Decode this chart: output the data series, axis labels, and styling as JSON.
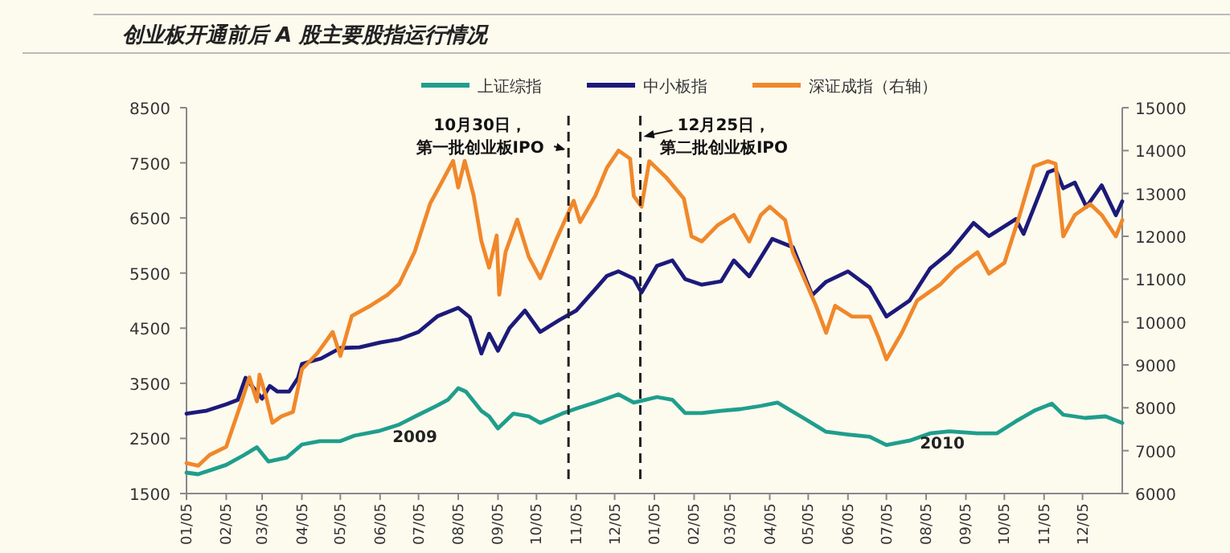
{
  "chart_data": {
    "type": "line",
    "title": "创业板开通前后 A 股主要股指运行情况",
    "xlim": [
      "2009-01-05",
      "2011-01-05"
    ],
    "ylim": [
      1500,
      8500
    ],
    "y2lim": [
      6000,
      15000
    ],
    "xticks": [
      {
        "value": "2009-01-05",
        "label": "01/05"
      },
      {
        "value": "2009-02-05",
        "label": "02/05"
      },
      {
        "value": "2009-03-05",
        "label": "03/05"
      },
      {
        "value": "2009-04-05",
        "label": "04/05"
      },
      {
        "value": "2009-05-05",
        "label": "05/05"
      },
      {
        "value": "2009-06-05",
        "label": "06/05"
      },
      {
        "value": "2009-07-05",
        "label": "07/05"
      },
      {
        "value": "2009-08-05",
        "label": "08/05"
      },
      {
        "value": "2009-09-05",
        "label": "09/05"
      },
      {
        "value": "2009-10-05",
        "label": "10/05"
      },
      {
        "value": "2009-11-05",
        "label": "11/05"
      },
      {
        "value": "2009-12-05",
        "label": "12/05"
      },
      {
        "value": "2010-01-05",
        "label": "01/05"
      },
      {
        "value": "2010-02-05",
        "label": "02/05"
      },
      {
        "value": "2010-03-05",
        "label": "03/05"
      },
      {
        "value": "2010-04-05",
        "label": "04/05"
      },
      {
        "value": "2010-05-05",
        "label": "05/05"
      },
      {
        "value": "2010-06-05",
        "label": "06/05"
      },
      {
        "value": "2010-07-05",
        "label": "07/05"
      },
      {
        "value": "2010-08-05",
        "label": "08/05"
      },
      {
        "value": "2010-09-05",
        "label": "09/05"
      },
      {
        "value": "2010-10-05",
        "label": "10/05"
      },
      {
        "value": "2010-11-05",
        "label": "11/05"
      },
      {
        "value": "2010-12-05",
        "label": "12/05"
      }
    ],
    "yticks": [
      1500,
      2500,
      3500,
      4500,
      5500,
      6500,
      7500,
      8500
    ],
    "y2ticks": [
      6000,
      7000,
      8000,
      9000,
      10000,
      11000,
      12000,
      13000,
      14000,
      15000
    ],
    "legend": "top",
    "grid": false,
    "marker": "none",
    "line_style": "solid",
    "series": [
      {
        "name": "上证综指",
        "color": "#1f9e8c",
        "x": [
          "2009-01-05",
          "2009-01-14",
          "2009-02-05",
          "2009-02-19",
          "2009-03-01",
          "2009-03-10",
          "2009-03-24",
          "2009-04-05",
          "2009-04-19",
          "2009-05-05",
          "2009-05-16",
          "2009-06-05",
          "2009-06-20",
          "2009-07-05",
          "2009-07-20",
          "2009-07-28",
          "2009-08-05",
          "2009-08-11",
          "2009-08-23",
          "2009-08-29",
          "2009-09-05",
          "2009-09-17",
          "2009-09-29",
          "2009-10-08",
          "2009-10-25",
          "2009-11-06",
          "2009-11-20",
          "2009-12-08",
          "2009-12-20",
          "2010-01-07",
          "2010-01-19",
          "2010-01-29",
          "2010-02-11",
          "2010-02-26",
          "2010-03-13",
          "2010-03-29",
          "2010-04-11",
          "2010-05-02",
          "2010-05-19",
          "2010-06-05",
          "2010-06-22",
          "2010-07-05",
          "2010-07-23",
          "2010-08-08",
          "2010-08-23",
          "2010-09-14",
          "2010-09-29",
          "2010-10-14",
          "2010-10-29",
          "2010-11-11",
          "2010-11-20",
          "2010-12-07",
          "2010-12-23",
          "2011-01-05"
        ],
        "values": [
          1880,
          1850,
          2020,
          2200,
          2340,
          2080,
          2150,
          2390,
          2450,
          2450,
          2550,
          2640,
          2750,
          2930,
          3100,
          3200,
          3410,
          3350,
          3000,
          2900,
          2680,
          2950,
          2900,
          2780,
          2950,
          3050,
          3150,
          3300,
          3150,
          3250,
          3200,
          2960,
          2960,
          3000,
          3030,
          3090,
          3150,
          2860,
          2620,
          2570,
          2530,
          2380,
          2460,
          2590,
          2630,
          2590,
          2590,
          2810,
          3010,
          3130,
          2930,
          2870,
          2900,
          2780
        ]
      },
      {
        "name": "中小板指",
        "color": "#1c1a7a",
        "x": [
          "2009-01-05",
          "2009-01-20",
          "2009-02-05",
          "2009-02-14",
          "2009-02-20",
          "2009-03-05",
          "2009-03-11",
          "2009-03-17",
          "2009-03-26",
          "2009-04-02",
          "2009-04-05",
          "2009-04-20",
          "2009-05-05",
          "2009-05-20",
          "2009-06-05",
          "2009-06-20",
          "2009-07-05",
          "2009-07-20",
          "2009-08-05",
          "2009-08-14",
          "2009-08-23",
          "2009-08-29",
          "2009-09-05",
          "2009-09-14",
          "2009-09-26",
          "2009-10-08",
          "2009-10-23",
          "2009-11-05",
          "2009-11-20",
          "2009-11-29",
          "2009-12-08",
          "2009-12-20",
          "2009-12-26",
          "2010-01-07",
          "2010-01-19",
          "2010-01-29",
          "2010-02-11",
          "2010-02-26",
          "2010-03-08",
          "2010-03-20",
          "2010-04-07",
          "2010-04-23",
          "2010-05-08",
          "2010-05-19",
          "2010-06-05",
          "2010-06-22",
          "2010-07-05",
          "2010-07-23",
          "2010-08-08",
          "2010-08-23",
          "2010-09-11",
          "2010-09-23",
          "2010-10-14",
          "2010-10-20",
          "2010-11-08",
          "2010-11-14",
          "2010-11-20",
          "2010-11-29",
          "2010-12-08",
          "2010-12-20",
          "2010-12-31",
          "2011-01-05"
        ],
        "values": [
          2950,
          3000,
          3120,
          3200,
          3600,
          3220,
          3450,
          3350,
          3350,
          3600,
          3850,
          3950,
          4140,
          4150,
          4240,
          4300,
          4430,
          4720,
          4870,
          4700,
          4040,
          4400,
          4090,
          4500,
          4820,
          4430,
          4650,
          4820,
          5210,
          5450,
          5530,
          5400,
          5150,
          5630,
          5730,
          5390,
          5290,
          5350,
          5730,
          5440,
          6120,
          5970,
          5100,
          5340,
          5530,
          5240,
          4710,
          5000,
          5580,
          5870,
          6410,
          6170,
          6480,
          6210,
          7330,
          7380,
          7040,
          7140,
          6700,
          7090,
          6550,
          6800
        ]
      },
      {
        "name": "深证成指（右轴）",
        "color": "#f0882a",
        "axis": "y2",
        "x": [
          "2009-01-05",
          "2009-01-14",
          "2009-01-23",
          "2009-02-05",
          "2009-02-17",
          "2009-02-23",
          "2009-03-01",
          "2009-03-03",
          "2009-03-08",
          "2009-03-13",
          "2009-03-20",
          "2009-03-29",
          "2009-04-05",
          "2009-04-17",
          "2009-04-29",
          "2009-05-05",
          "2009-05-14",
          "2009-05-29",
          "2009-06-11",
          "2009-06-20",
          "2009-07-02",
          "2009-07-14",
          "2009-07-23",
          "2009-08-01",
          "2009-08-05",
          "2009-08-10",
          "2009-08-17",
          "2009-08-23",
          "2009-08-29",
          "2009-09-04",
          "2009-09-06",
          "2009-09-11",
          "2009-09-20",
          "2009-09-29",
          "2009-10-08",
          "2009-10-20",
          "2009-11-03",
          "2009-11-08",
          "2009-11-20",
          "2009-11-29",
          "2009-12-08",
          "2009-12-17",
          "2009-12-20",
          "2009-12-26",
          "2010-01-01",
          "2010-01-14",
          "2010-01-28",
          "2010-02-03",
          "2010-02-11",
          "2010-02-23",
          "2010-03-08",
          "2010-03-20",
          "2010-03-29",
          "2010-04-05",
          "2010-04-17",
          "2010-04-23",
          "2010-05-11",
          "2010-05-19",
          "2010-05-26",
          "2010-06-08",
          "2010-06-22",
          "2010-06-29",
          "2010-07-05",
          "2010-07-17",
          "2010-07-29",
          "2010-08-16",
          "2010-08-28",
          "2010-09-14",
          "2010-09-23",
          "2010-10-05",
          "2010-10-17",
          "2010-10-28",
          "2010-11-08",
          "2010-11-14",
          "2010-11-20",
          "2010-11-29",
          "2010-12-11",
          "2010-12-20",
          "2010-12-31",
          "2011-01-05"
        ],
        "values": [
          6710,
          6650,
          6900,
          7090,
          8150,
          8710,
          8150,
          8770,
          8270,
          7650,
          7800,
          7900,
          8900,
          9270,
          9770,
          9210,
          10140,
          10390,
          10640,
          10890,
          11640,
          12760,
          13260,
          13760,
          13140,
          13760,
          12950,
          11890,
          11270,
          12020,
          10640,
          11640,
          12390,
          11520,
          11020,
          11890,
          12830,
          12330,
          12950,
          13600,
          14000,
          13810,
          12940,
          12690,
          13750,
          13380,
          12880,
          12000,
          11880,
          12250,
          12500,
          11880,
          12500,
          12690,
          12380,
          11630,
          10380,
          9750,
          10380,
          10130,
          10130,
          9630,
          9130,
          9750,
          10500,
          10880,
          11250,
          11630,
          11130,
          11380,
          12500,
          13630,
          13750,
          13690,
          12000,
          12500,
          12750,
          12500,
          12000,
          12380
        ]
      }
    ],
    "ref_lines": [
      {
        "axis": "x",
        "value": "2009-10-30",
        "label": "10月30日，第一批创业板IPO",
        "color": "#222222",
        "line_style": "dashed"
      },
      {
        "axis": "x",
        "value": "2009-12-25",
        "label": "12月25日，第二批创业板IPO",
        "color": "#222222",
        "line_style": "dashed"
      }
    ],
    "annotations": [
      "2009",
      "2010"
    ]
  }
}
